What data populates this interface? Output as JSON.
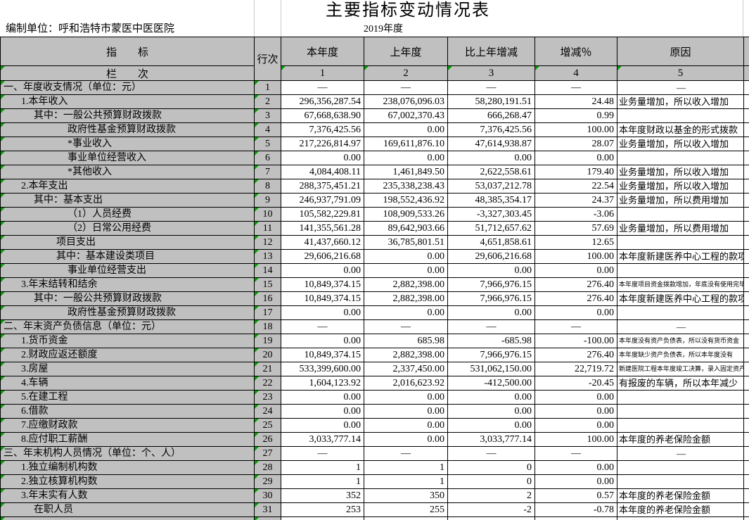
{
  "title": "主要指标变动情况表",
  "meta": {
    "unit_label": "编制单位：呼和浩特市蒙医中医医院",
    "year": "2019年度"
  },
  "table": {
    "headers": {
      "indicator": "指　　标",
      "row_no": "行次",
      "current_year": "本年度",
      "prev_year": "上年度",
      "change": "比上年增减",
      "change_pct": "增减％",
      "reason": "原因"
    },
    "col_nums_label": "栏　　次",
    "col_nums": [
      "1",
      "2",
      "3",
      "4",
      "5"
    ],
    "rows": [
      {
        "no": "1",
        "label": "一、年度收支情况（单位：元）",
        "indent": 0,
        "section": true,
        "current": "—",
        "prev": "—",
        "change": "—",
        "pct": "—",
        "reason": "—"
      },
      {
        "no": "2",
        "label": "1.本年收入",
        "indent": 1,
        "current": "296,356,287.54",
        "prev": "238,076,096.03",
        "change": "58,280,191.51",
        "pct": "24.48",
        "reason": "业务量增加，所以收入增加"
      },
      {
        "no": "3",
        "label": "其中：一般公共预算财政拨款",
        "indent": 2,
        "current": "67,668,638.90",
        "prev": "67,002,370.43",
        "change": "666,268.47",
        "pct": "0.99",
        "reason": ""
      },
      {
        "no": "4",
        "label": "政府性基金预算财政拨款",
        "indent": 4,
        "current": "7,376,425.56",
        "prev": "0.00",
        "change": "7,376,425.56",
        "pct": "100.00",
        "reason": "本年度财政以基金的形式拨款"
      },
      {
        "no": "5",
        "label": "*事业收入",
        "indent": 4,
        "current": "217,226,814.97",
        "prev": "169,611,876.10",
        "change": "47,614,938.87",
        "pct": "28.07",
        "reason": "业务量增加，所以收入增加"
      },
      {
        "no": "6",
        "label": "事业单位经营收入",
        "indent": 4,
        "current": "0.00",
        "prev": "0.00",
        "change": "0.00",
        "pct": "0.00",
        "reason": ""
      },
      {
        "no": "7",
        "label": "*其他收入",
        "indent": 4,
        "current": "4,084,408.11",
        "prev": "1,461,849.50",
        "change": "2,622,558.61",
        "pct": "179.40",
        "reason": "业务量增加，所以收入增加"
      },
      {
        "no": "8",
        "label": "2.本年支出",
        "indent": 1,
        "current": "288,375,451.21",
        "prev": "235,338,238.43",
        "change": "53,037,212.78",
        "pct": "22.54",
        "reason": "业务量增加，所以收入增加"
      },
      {
        "no": "9",
        "label": "其中：基本支出",
        "indent": 2,
        "current": "246,937,791.09",
        "prev": "198,552,436.92",
        "change": "48,385,354.17",
        "pct": "24.37",
        "reason": "业务量增加，所以费用增加"
      },
      {
        "no": "10",
        "label": "（1）人员经费",
        "indent": 4,
        "current": "105,582,229.81",
        "prev": "108,909,533.26",
        "change": "-3,327,303.45",
        "pct": "-3.06",
        "reason": ""
      },
      {
        "no": "11",
        "label": "（2）日常公用经费",
        "indent": 4,
        "current": "141,355,561.28",
        "prev": "89,642,903.66",
        "change": "51,712,657.62",
        "pct": "57.69",
        "reason": "业务量增加，所以费用增加"
      },
      {
        "no": "12",
        "label": "项目支出",
        "indent": 3,
        "current": "41,437,660.12",
        "prev": "36,785,801.51",
        "change": "4,651,858.61",
        "pct": "12.65",
        "reason": ""
      },
      {
        "no": "13",
        "label": "其中：基本建设类项目",
        "indent": 3,
        "current": "29,606,216.68",
        "prev": "0.00",
        "change": "29,606,216.68",
        "pct": "100.00",
        "reason": "本年度新建医养中心工程的款项"
      },
      {
        "no": "14",
        "label": "事业单位经营支出",
        "indent": 4,
        "current": "0.00",
        "prev": "0.00",
        "change": "0.00",
        "pct": "0.00",
        "reason": ""
      },
      {
        "no": "15",
        "label": "3.年末结转和结余",
        "indent": 1,
        "current": "10,849,374.15",
        "prev": "2,882,398.00",
        "change": "7,966,976.15",
        "pct": "276.40",
        "reason": "本年度项目资金拨款增加，年底没有使用完毕",
        "small": true
      },
      {
        "no": "16",
        "label": "其中：一般公共预算财政拨款",
        "indent": 2,
        "current": "10,849,374.15",
        "prev": "2,882,398.00",
        "change": "7,966,976.15",
        "pct": "276.40",
        "reason": "本年度新建医养中心工程的款项"
      },
      {
        "no": "17",
        "label": "政府性基金预算财政拨款",
        "indent": 4,
        "current": "0.00",
        "prev": "0.00",
        "change": "0.00",
        "pct": "0.00",
        "reason": ""
      },
      {
        "no": "18",
        "label": "二、年末资产负债信息（单位：元）",
        "indent": 0,
        "section": true,
        "current": "—",
        "prev": "—",
        "change": "—",
        "pct": "—",
        "reason": "—"
      },
      {
        "no": "19",
        "label": "1.货币资金",
        "indent": 1,
        "current": "0.00",
        "prev": "685.98",
        "change": "-685.98",
        "pct": "-100.00",
        "reason": "本年度没有资产负债表，所以没有货币资金",
        "small": true
      },
      {
        "no": "20",
        "label": "2.财政应返还额度",
        "indent": 1,
        "current": "10,849,374.15",
        "prev": "2,882,398.00",
        "change": "7,966,976.15",
        "pct": "276.40",
        "reason": "本年度缺少资产负债表，所以本年度没有",
        "small": true
      },
      {
        "no": "21",
        "label": "3.房屋",
        "indent": 1,
        "current": "533,399,600.00",
        "prev": "2,337,450.00",
        "change": "531,062,150.00",
        "pct": "22,719.72",
        "reason": "新建医院工程本年度竣工决算，录入固定资产",
        "small": true
      },
      {
        "no": "22",
        "label": "4.车辆",
        "indent": 1,
        "current": "1,604,123.92",
        "prev": "2,016,623.92",
        "change": "-412,500.00",
        "pct": "-20.45",
        "reason": "有报废的车辆，所以本年减少"
      },
      {
        "no": "23",
        "label": "5.在建工程",
        "indent": 1,
        "current": "0.00",
        "prev": "0.00",
        "change": "0.00",
        "pct": "0.00",
        "reason": ""
      },
      {
        "no": "24",
        "label": "6.借款",
        "indent": 1,
        "current": "0.00",
        "prev": "0.00",
        "change": "0.00",
        "pct": "0.00",
        "reason": ""
      },
      {
        "no": "25",
        "label": "7.应缴财政款",
        "indent": 1,
        "current": "0.00",
        "prev": "0.00",
        "change": "0.00",
        "pct": "0.00",
        "reason": ""
      },
      {
        "no": "26",
        "label": "8.应付职工薪酬",
        "indent": 1,
        "current": "3,033,777.14",
        "prev": "0.00",
        "change": "3,033,777.14",
        "pct": "100.00",
        "reason": "本年度的养老保险金额"
      },
      {
        "no": "27",
        "label": "三、年末机构人员情况（单位：个、人）",
        "indent": 0,
        "section": true,
        "current": "—",
        "prev": "—",
        "change": "—",
        "pct": "—",
        "reason": "—"
      },
      {
        "no": "28",
        "label": "1.独立编制机构数",
        "indent": 1,
        "current": "1",
        "prev": "1",
        "change": "0",
        "pct": "0.00",
        "reason": ""
      },
      {
        "no": "29",
        "label": "2.独立核算机构数",
        "indent": 1,
        "current": "1",
        "prev": "1",
        "change": "0",
        "pct": "0.00",
        "reason": ""
      },
      {
        "no": "30",
        "label": "3.年末实有人数",
        "indent": 1,
        "current": "352",
        "prev": "350",
        "change": "2",
        "pct": "0.57",
        "reason": "本年度的养老保险金额"
      },
      {
        "no": "31",
        "label": "在职人员",
        "indent": 2,
        "current": "253",
        "prev": "255",
        "change": "-2",
        "pct": "-0.78",
        "reason": "本年度的养老保险金额"
      }
    ]
  },
  "colors": {
    "header_fill": "#c0c0c0",
    "grid_line": "#000000",
    "error_flag": "#00a000"
  }
}
